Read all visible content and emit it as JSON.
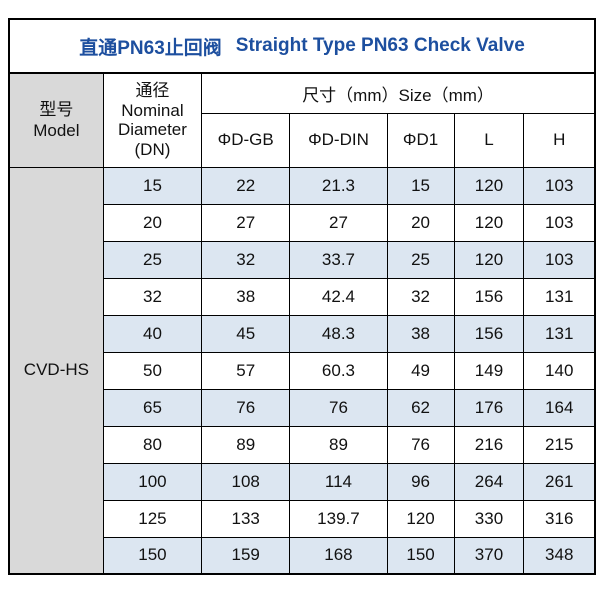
{
  "title": {
    "zh": "直通PN63止回阀",
    "en": "Straight Type PN63 Check Valve"
  },
  "colors": {
    "accent": "#1d4f9f",
    "stripe": "#dce6f1",
    "header_gray": "#d9d9d9",
    "model_bg": "#d9d9d9"
  },
  "table": {
    "model_header": {
      "zh": "型号",
      "en": "Model"
    },
    "dn_header": {
      "zh": "通径",
      "en_lines": [
        "Nominal",
        "Diameter",
        "(DN)"
      ]
    },
    "size_header": "尺寸（mm）Size（mm）",
    "sub_headers": [
      "ΦD-GB",
      "ΦD-DIN",
      "ΦD1",
      "L",
      "H"
    ],
    "model_value": "CVD-HS",
    "rows": [
      [
        "15",
        "22",
        "21.3",
        "15",
        "120",
        "103"
      ],
      [
        "20",
        "27",
        "27",
        "20",
        "120",
        "103"
      ],
      [
        "25",
        "32",
        "33.7",
        "25",
        "120",
        "103"
      ],
      [
        "32",
        "38",
        "42.4",
        "32",
        "156",
        "131"
      ],
      [
        "40",
        "45",
        "48.3",
        "38",
        "156",
        "131"
      ],
      [
        "50",
        "57",
        "60.3",
        "49",
        "149",
        "140"
      ],
      [
        "65",
        "76",
        "76",
        "62",
        "176",
        "164"
      ],
      [
        "80",
        "89",
        "89",
        "76",
        "216",
        "215"
      ],
      [
        "100",
        "108",
        "114",
        "96",
        "264",
        "261"
      ],
      [
        "125",
        "133",
        "139.7",
        "120",
        "330",
        "316"
      ],
      [
        "150",
        "159",
        "168",
        "150",
        "370",
        "348"
      ]
    ]
  }
}
